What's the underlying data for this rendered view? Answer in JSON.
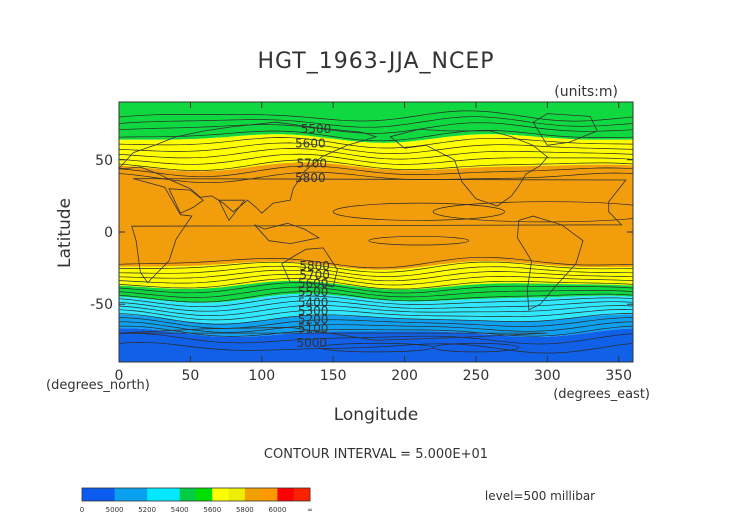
{
  "chart_data": {
    "type": "heatmap",
    "title": "HGT_1963-JJA_NCEP",
    "units_label": "(units:m)",
    "xlabel": "Longitude",
    "ylabel": "Latitude",
    "x_unit_label": "(degrees_east)",
    "y_unit_label": "(degrees_north)",
    "xlim": [
      0,
      360
    ],
    "ylim": [
      -90,
      90
    ],
    "x_ticks": [
      0,
      50,
      100,
      150,
      200,
      250,
      300,
      350
    ],
    "y_ticks": [
      -50,
      0,
      50
    ],
    "contour_interval_text": "CONTOUR INTERVAL = 5.000E+01",
    "level_text": "level=500 millibar",
    "contour_labels": [
      {
        "text": "5500",
        "lon": 138,
        "lat": 72
      },
      {
        "text": "5600",
        "lon": 134,
        "lat": 62
      },
      {
        "text": "5700",
        "lon": 135,
        "lat": 48
      },
      {
        "text": "5800",
        "lon": 134,
        "lat": 38
      },
      {
        "text": "5800",
        "lon": 137,
        "lat": -23
      },
      {
        "text": "5700",
        "lon": 137,
        "lat": -29
      },
      {
        "text": "5600",
        "lon": 136,
        "lat": -35
      },
      {
        "text": "5500",
        "lon": 136,
        "lat": -41
      },
      {
        "text": "5400",
        "lon": 136,
        "lat": -48
      },
      {
        "text": "5300",
        "lon": 136,
        "lat": -54
      },
      {
        "text": "5200",
        "lon": 136,
        "lat": -60
      },
      {
        "text": "5100",
        "lon": 136,
        "lat": -66
      },
      {
        "text": "5000",
        "lon": 135,
        "lat": -76
      }
    ],
    "zonal_bands": [
      {
        "lat_from": 90,
        "lat_to": 65,
        "value_class": "5400-5600"
      },
      {
        "lat_from": 65,
        "lat_to": 45,
        "value_class": "5600-5800"
      },
      {
        "lat_from": 45,
        "lat_to": -23,
        "value_class": "5800-6000"
      },
      {
        "lat_from": -23,
        "lat_to": -37,
        "value_class": "5600-5800"
      },
      {
        "lat_from": -37,
        "lat_to": -46,
        "value_class": "5400-5600"
      },
      {
        "lat_from": -46,
        "lat_to": -60,
        "value_class": "5200-5400"
      },
      {
        "lat_from": -60,
        "lat_to": -70,
        "value_class": "5000-5200"
      },
      {
        "lat_from": -70,
        "lat_to": -90,
        "value_class": "0-5000"
      }
    ],
    "colorbar": {
      "labels": [
        "0",
        "5000",
        "5200",
        "5400",
        "5600",
        "5800",
        "6000",
        "∞"
      ],
      "colors": [
        "#0a5cf0",
        "#0a5cf0",
        "#0aa0f0",
        "#0aa0f0",
        "#00e8ff",
        "#00e8ff",
        "#00cc44",
        "#00e000",
        "#ffff00",
        "#eeee00",
        "#f2a000",
        "#ff9900",
        "#ff0000",
        "#ff2200"
      ]
    },
    "band_colors": {
      "0-5000": "#1060e8",
      "5000-5200": "#10a0f0",
      "5200-5400": "#30e8ff",
      "5400-5600": "#10d840",
      "5600-5800": "#ffff00",
      "5800-6000": "#f29d0c"
    },
    "grid": false
  }
}
